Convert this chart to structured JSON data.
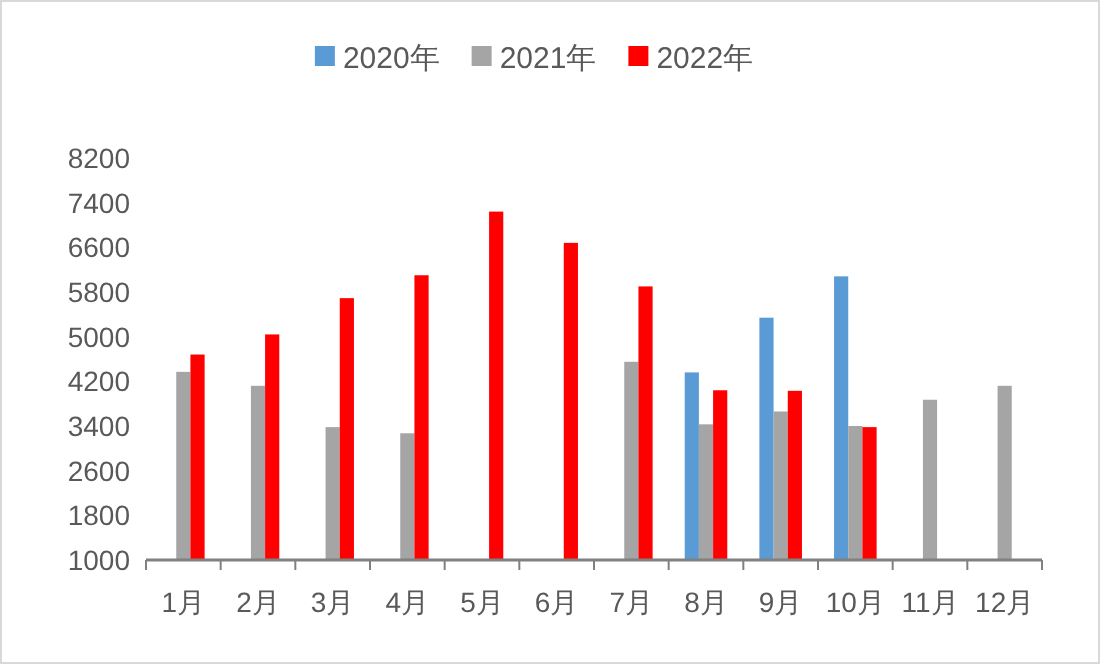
{
  "chart_data": {
    "type": "bar",
    "categories": [
      "1月",
      "2月",
      "3月",
      "4月",
      "5月",
      "6月",
      "7月",
      "8月",
      "9月",
      "10月",
      "11月",
      "12月"
    ],
    "series": [
      {
        "name": "2020年",
        "color": "#5b9bd5",
        "values": [
          null,
          null,
          null,
          null,
          null,
          null,
          null,
          4360,
          5340,
          6080,
          null,
          null
        ]
      },
      {
        "name": "2021年",
        "color": "#a5a5a5",
        "values": [
          4370,
          4120,
          3380,
          3270,
          null,
          null,
          4550,
          3430,
          3660,
          3400,
          3870,
          4120
        ]
      },
      {
        "name": "2022年",
        "color": "#ff0000",
        "values": [
          4680,
          5040,
          5690,
          6100,
          7240,
          6680,
          5900,
          4040,
          4030,
          3380,
          null,
          null
        ]
      }
    ],
    "ylim": [
      1000,
      8200
    ],
    "yticks": [
      1000,
      1800,
      2600,
      3400,
      4200,
      5000,
      5800,
      6600,
      7400,
      8200
    ],
    "grid": false,
    "legend": "top"
  }
}
